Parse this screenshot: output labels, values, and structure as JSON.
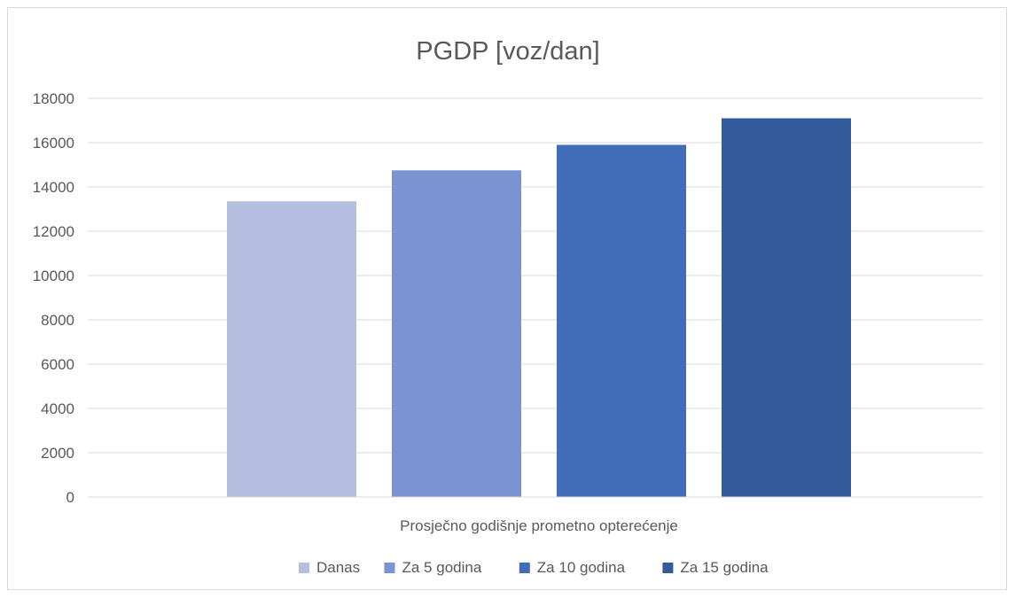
{
  "chart_data": {
    "type": "bar",
    "title": "PGDP [voz/dan]",
    "categories": [
      "Prosječno godišnje prometno opterećenje"
    ],
    "series": [
      {
        "name": "Danas",
        "values": [
          13350
        ],
        "color": "#b4bfdf"
      },
      {
        "name": "Za 5 godina",
        "values": [
          14750
        ],
        "color": "#7b93d0"
      },
      {
        "name": "Za 10 godina",
        "values": [
          15900
        ],
        "color": "#416cb8"
      },
      {
        "name": "Za 15 godina",
        "values": [
          17100
        ],
        "color": "#335a9a"
      }
    ],
    "ylim": [
      0,
      18000
    ],
    "yticks": [
      0,
      2000,
      4000,
      6000,
      8000,
      10000,
      12000,
      14000,
      16000,
      18000
    ],
    "grid": true,
    "legend_position": "bottom"
  }
}
